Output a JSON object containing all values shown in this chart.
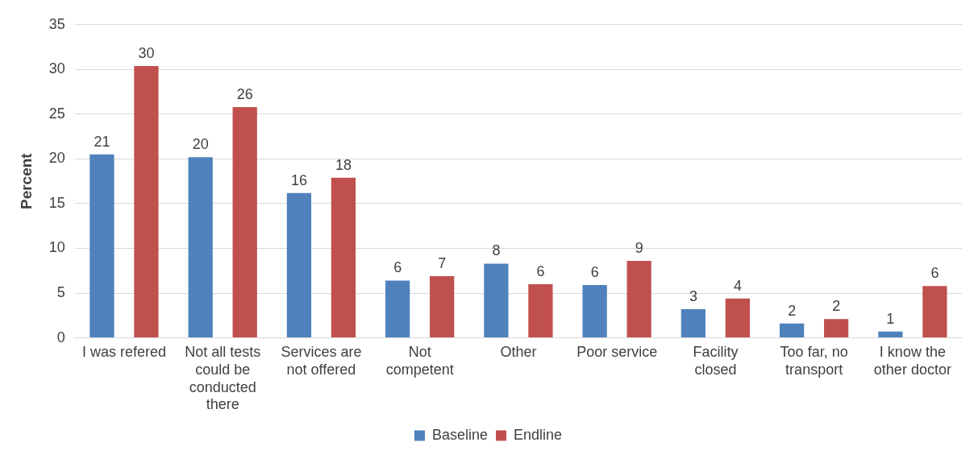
{
  "chart_data": {
    "type": "bar",
    "ylabel": "Percent",
    "categories": [
      "I was refered",
      "Not all tests could be conducted there",
      "Services are not offered",
      "Not competent",
      "Other",
      "Poor service",
      "Facility closed",
      "Too far, no transport",
      "I know the other doctor"
    ],
    "series": [
      {
        "name": "Baseline",
        "color": "#4f81bd",
        "values": [
          20.5,
          20.2,
          16.2,
          6.4,
          8.3,
          5.9,
          3.2,
          1.6,
          0.7
        ],
        "value_labels": [
          "21",
          "20",
          "16",
          "6",
          "8",
          "6",
          "3",
          "2",
          "1"
        ]
      },
      {
        "name": "Endline",
        "color": "#c0504d",
        "values": [
          30.4,
          25.8,
          17.9,
          6.9,
          6.0,
          8.6,
          4.4,
          2.1,
          5.8
        ],
        "value_labels": [
          "30",
          "26",
          "18",
          "7",
          "6",
          "9",
          "4",
          "2",
          "6"
        ]
      }
    ],
    "ylim": [
      0,
      35
    ],
    "yticks": [
      0,
      5,
      10,
      15,
      20,
      25,
      30,
      35
    ],
    "grid": "y",
    "legend": "bottom"
  }
}
